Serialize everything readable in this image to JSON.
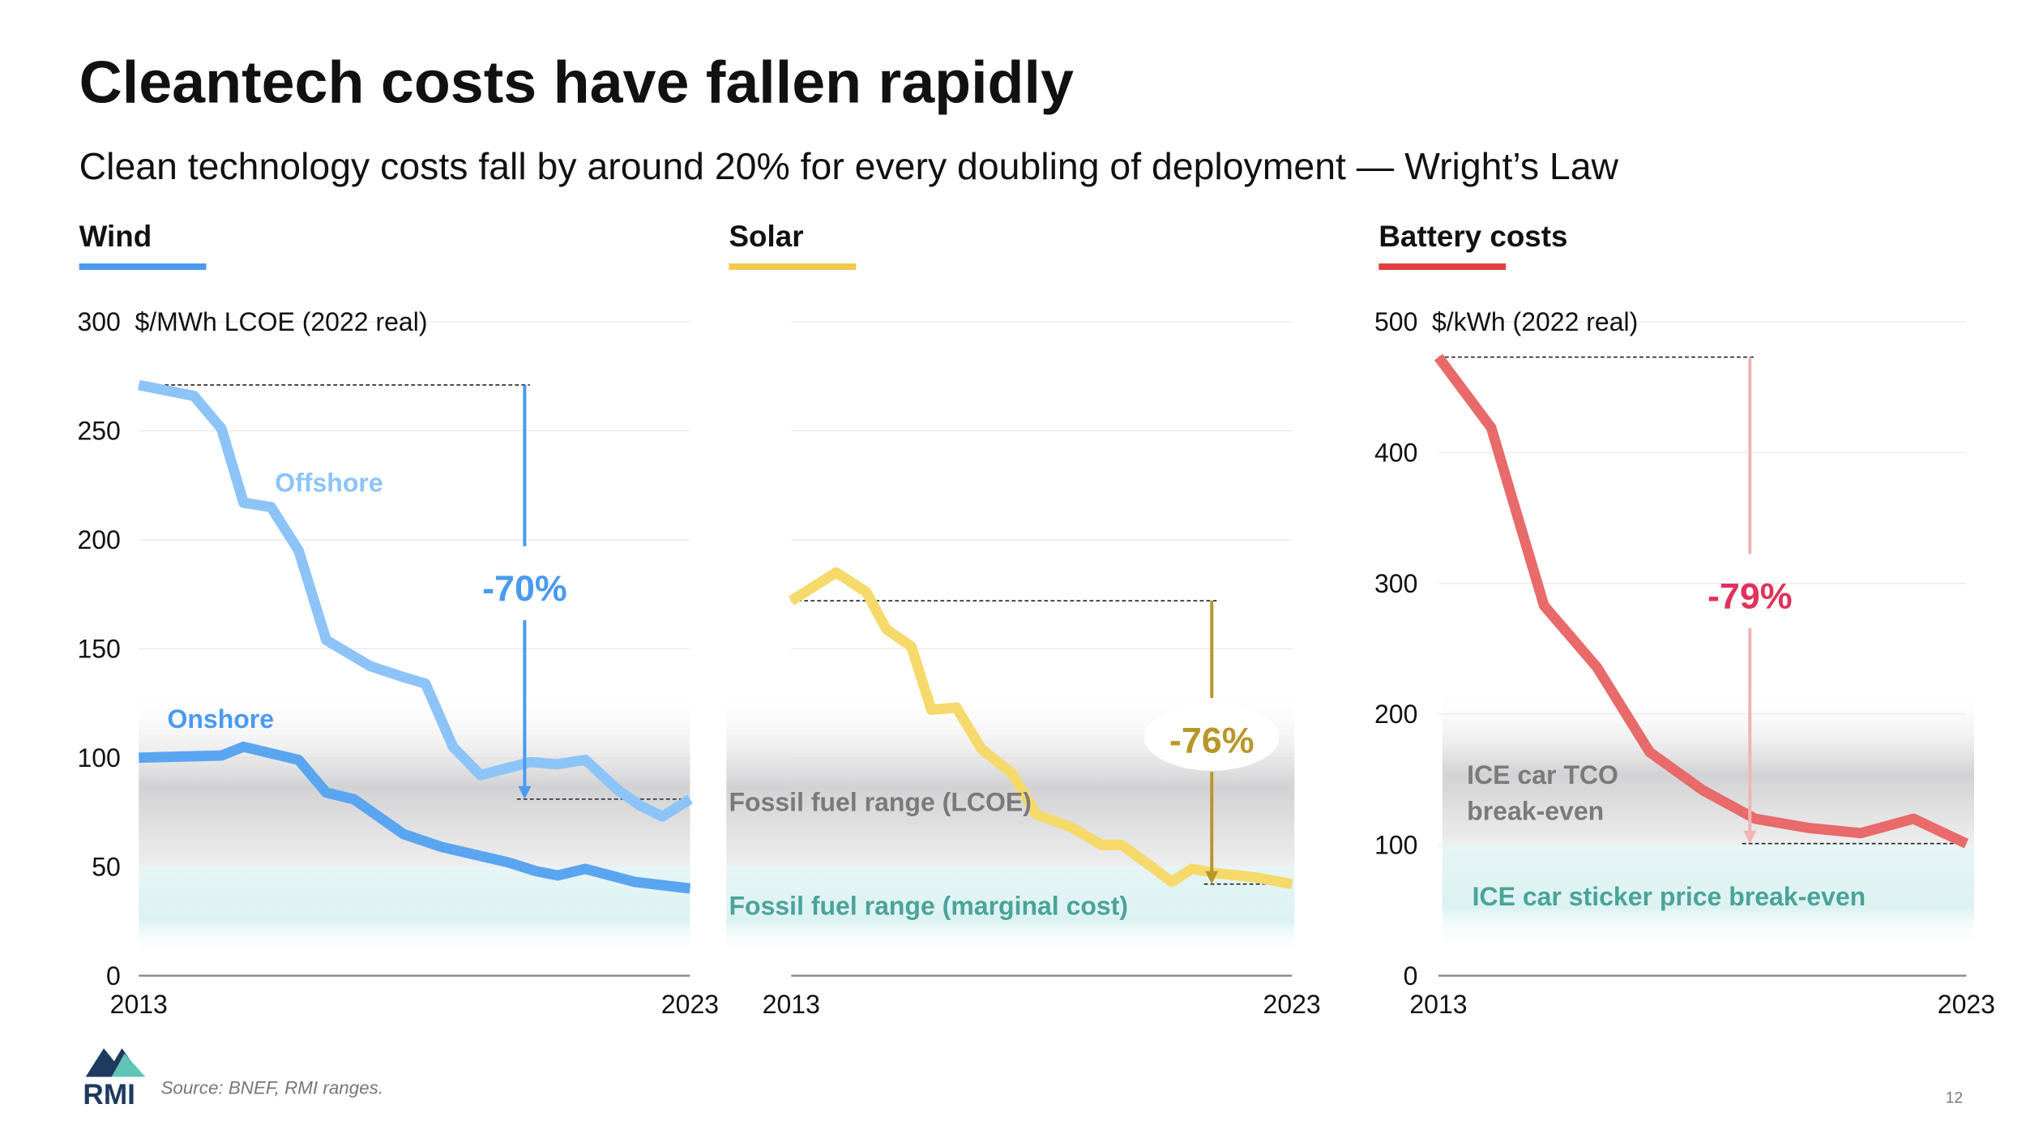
{
  "title": "Cleantech costs have fallen rapidly",
  "subtitle": "Clean technology costs fall by around 20% for every doubling of deployment — Wright’s Law",
  "source": "Source: BNEF, RMI ranges.",
  "logo_text": "RMI",
  "page_number": "12",
  "colors": {
    "wind_onshore": "#5aa5f0",
    "wind_offshore": "#8cc4f7",
    "solar": "#f5d96b",
    "battery": "#e86a6a",
    "fossil_lcoe": "#d4d4d6",
    "fossil_marginal": "#dff3f3",
    "teal_text": "#4aa39a",
    "gray_text": "#7a7a7a"
  },
  "chart_data": [
    {
      "type": "line",
      "panel_title": "Wind",
      "accent": "#4a9af0",
      "ylabel": "$/MWh LCOE (2022 real)",
      "ylim": [
        0,
        300
      ],
      "yticks": [
        "0",
        "50",
        "100",
        "150",
        "200",
        "250",
        "300"
      ],
      "xticks": [
        "2013",
        "2023"
      ],
      "xlim": [
        2013,
        2023
      ],
      "grid": true,
      "series": [
        {
          "name": "Offshore",
          "color": "#8cc4f7",
          "x": [
            2013,
            2014,
            2014.5,
            2014.9,
            2015.4,
            2015.9,
            2016.4,
            2017.2,
            2017.8,
            2018.2,
            2018.7,
            2019.2,
            2020.1,
            2020.6,
            2021.1,
            2021.7,
            2022.1,
            2022.5,
            2023
          ],
          "y": [
            271,
            266,
            251,
            217,
            215,
            195,
            154,
            142,
            137,
            134,
            105,
            92,
            98,
            97,
            99,
            85,
            78,
            73,
            81
          ]
        },
        {
          "name": "Onshore",
          "color": "#5aa5f0",
          "x": [
            2013,
            2014.5,
            2014.9,
            2015.9,
            2016.4,
            2016.9,
            2017.8,
            2018.5,
            2019.7,
            2020.2,
            2020.6,
            2021.1,
            2022.0,
            2023
          ],
          "y": [
            100,
            101,
            105,
            99,
            84,
            81,
            65,
            59,
            52,
            48,
            46,
            49,
            43,
            40
          ]
        }
      ],
      "bands": [
        {
          "label": "Fossil fuel range (LCOE)",
          "range": [
            50,
            120
          ]
        },
        {
          "label": "Fossil fuel range (marginal cost)",
          "range": [
            15,
            50
          ]
        }
      ],
      "annotation": {
        "label": "-70%",
        "from": 271,
        "to": 81,
        "color": "#4a9af0"
      }
    },
    {
      "type": "line",
      "panel_title": "Solar",
      "accent": "#f2c94c",
      "ylim": [
        0,
        300
      ],
      "xticks": [
        "2013",
        "2023"
      ],
      "xlim": [
        2013,
        2023
      ],
      "grid": true,
      "series": [
        {
          "color": "#f5d96b",
          "x": [
            2013,
            2013.9,
            2014.5,
            2014.9,
            2015.4,
            2015.8,
            2016.3,
            2016.8,
            2017.4,
            2017.9,
            2018.6,
            2019.2,
            2019.6,
            2020.2,
            2020.6,
            2021.0,
            2021.5,
            2022.3,
            2023
          ],
          "y": [
            172,
            185,
            176,
            159,
            151,
            122,
            123,
            104,
            93,
            74,
            68,
            60,
            60,
            50,
            43,
            49,
            47,
            45,
            42
          ]
        }
      ],
      "annotation": {
        "label": "-76%",
        "from": 172,
        "to": 42,
        "color": "#b8962a"
      }
    },
    {
      "type": "line",
      "panel_title": "Battery costs",
      "accent": "#e04040",
      "ylabel": "$/kWh (2022 real)",
      "ylim": [
        0,
        500
      ],
      "yticks": [
        "0",
        "100",
        "200",
        "300",
        "400",
        "500"
      ],
      "xticks": [
        "2013",
        "2023"
      ],
      "xlim": [
        2013,
        2023
      ],
      "grid": true,
      "series": [
        {
          "color": "#e86a6a",
          "x": [
            2013,
            2014,
            2015,
            2016,
            2017,
            2018,
            2019,
            2020,
            2021,
            2022,
            2023
          ],
          "y": [
            473,
            419,
            283,
            236,
            171,
            142,
            120,
            113,
            109,
            120,
            101
          ]
        }
      ],
      "bands": [
        {
          "label": "ICE car TCO break-even",
          "label_lines": [
            "ICE car TCO",
            "break-even"
          ],
          "range": [
            100,
            200
          ]
        },
        {
          "label": "ICE car sticker price break-even",
          "range": [
            30,
            100
          ]
        }
      ],
      "annotation": {
        "label": "-79%",
        "from": 473,
        "to": 101,
        "color": "#e0325a"
      }
    }
  ]
}
